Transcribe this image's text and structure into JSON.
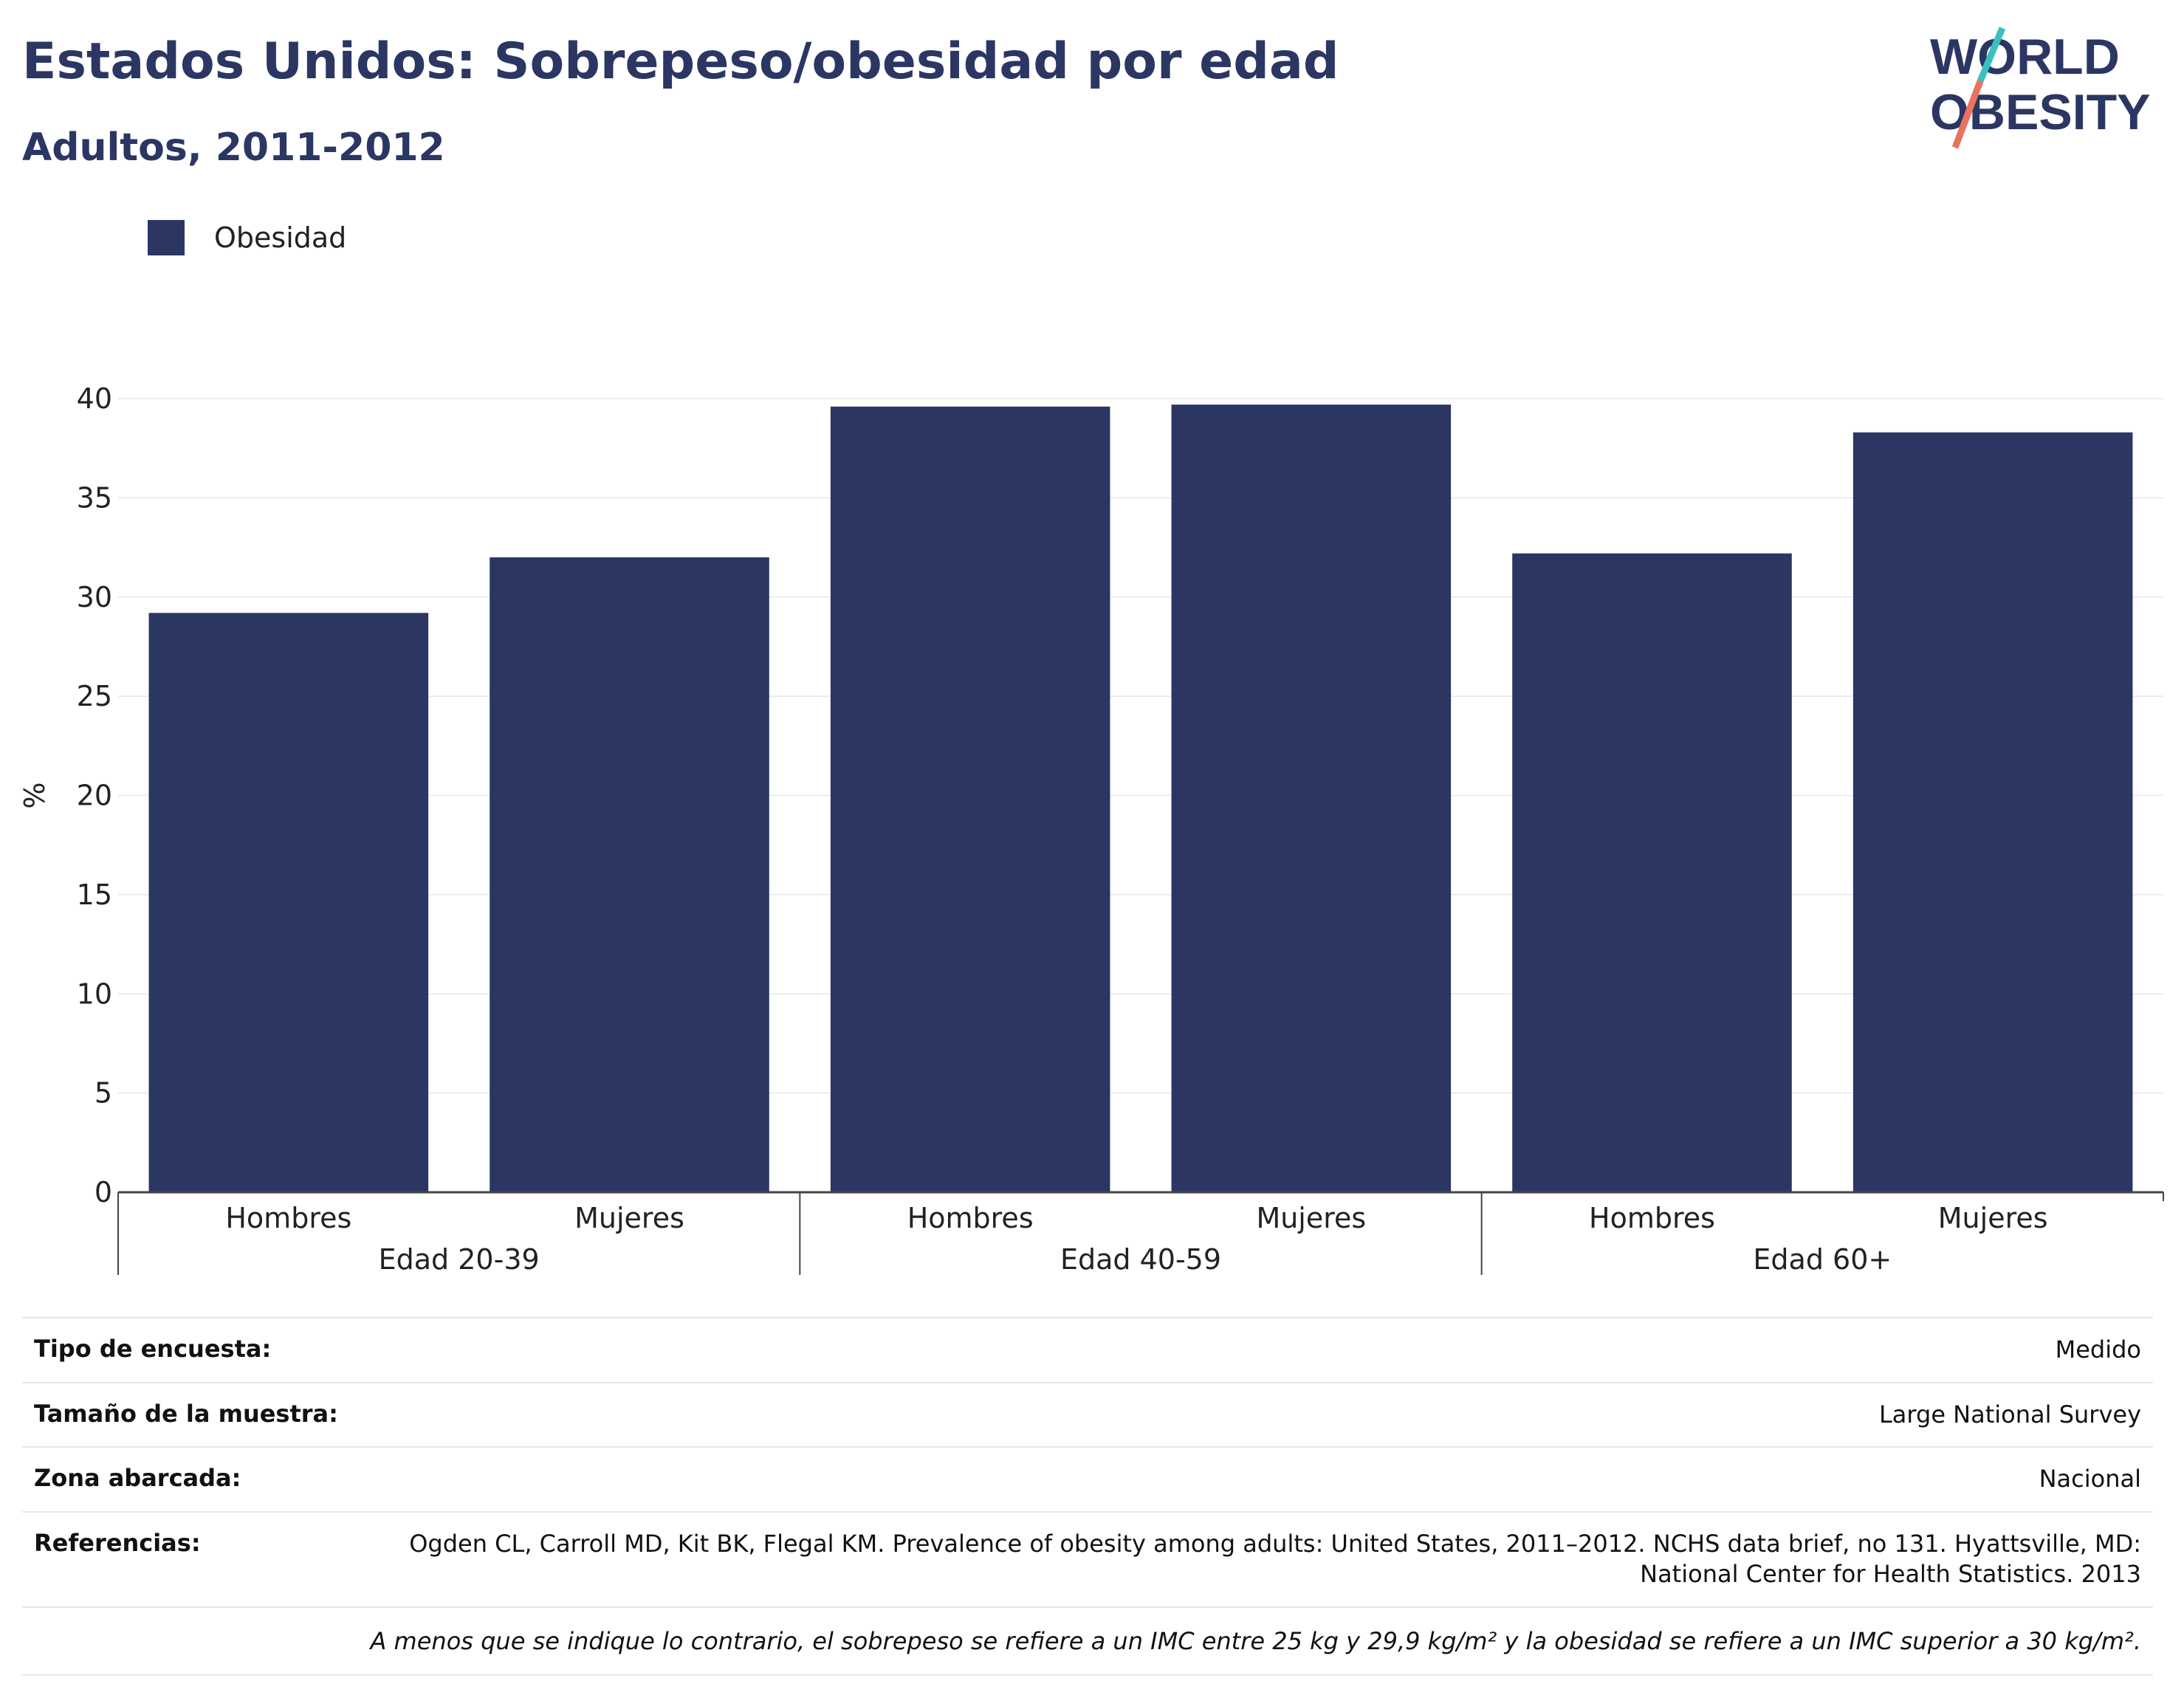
{
  "header": {
    "title": "Estados Unidos: Sobrepeso/obesidad por edad",
    "subtitle": "Adultos, 2011-2012"
  },
  "logo": {
    "line1": "WORLD",
    "line2": "OBESITY",
    "accent_teal": "#3bbfbf",
    "accent_coral": "#e8735e"
  },
  "colors": {
    "bar": "#2b3663",
    "title": "#2b3663",
    "grid": "#e9ebf0"
  },
  "chart_data": {
    "type": "bar",
    "legend": [
      "Obesidad"
    ],
    "legend_position": "top-left",
    "ylabel": "%",
    "ylim": [
      0,
      40
    ],
    "yticks": [
      0,
      5,
      10,
      15,
      20,
      25,
      30,
      35,
      40
    ],
    "grid": true,
    "groups": [
      {
        "label": "Edad 20-39",
        "categories": [
          "Hombres",
          "Mujeres"
        ],
        "values": [
          29.2,
          32.0
        ]
      },
      {
        "label": "Edad 40-59",
        "categories": [
          "Hombres",
          "Mujeres"
        ],
        "values": [
          39.6,
          39.7
        ]
      },
      {
        "label": "Edad 60+",
        "categories": [
          "Hombres",
          "Mujeres"
        ],
        "values": [
          32.2,
          38.3
        ]
      }
    ],
    "series": [
      {
        "name": "Obesidad",
        "values": [
          29.2,
          32.0,
          39.6,
          39.7,
          32.2,
          38.3
        ]
      }
    ]
  },
  "info": {
    "rows": [
      {
        "label": "Tipo de encuesta:",
        "value": "Medido"
      },
      {
        "label": "Tamaño de la muestra:",
        "value": "Large National Survey"
      },
      {
        "label": "Zona abarcada:",
        "value": "Nacional"
      },
      {
        "label": "Referencias:",
        "value": "Ogden CL, Carroll MD, Kit BK, Flegal KM. Prevalence of obesity among adults: United States, 2011–2012. NCHS data brief, no 131. Hyattsville, MD: National Center for Health Statistics. 2013"
      }
    ],
    "note": "A menos que se indique lo contrario, el sobrepeso se refiere a un IMC entre 25 kg y 29,9 kg/m² y la obesidad se refiere a un IMC superior a 30 kg/m²."
  }
}
